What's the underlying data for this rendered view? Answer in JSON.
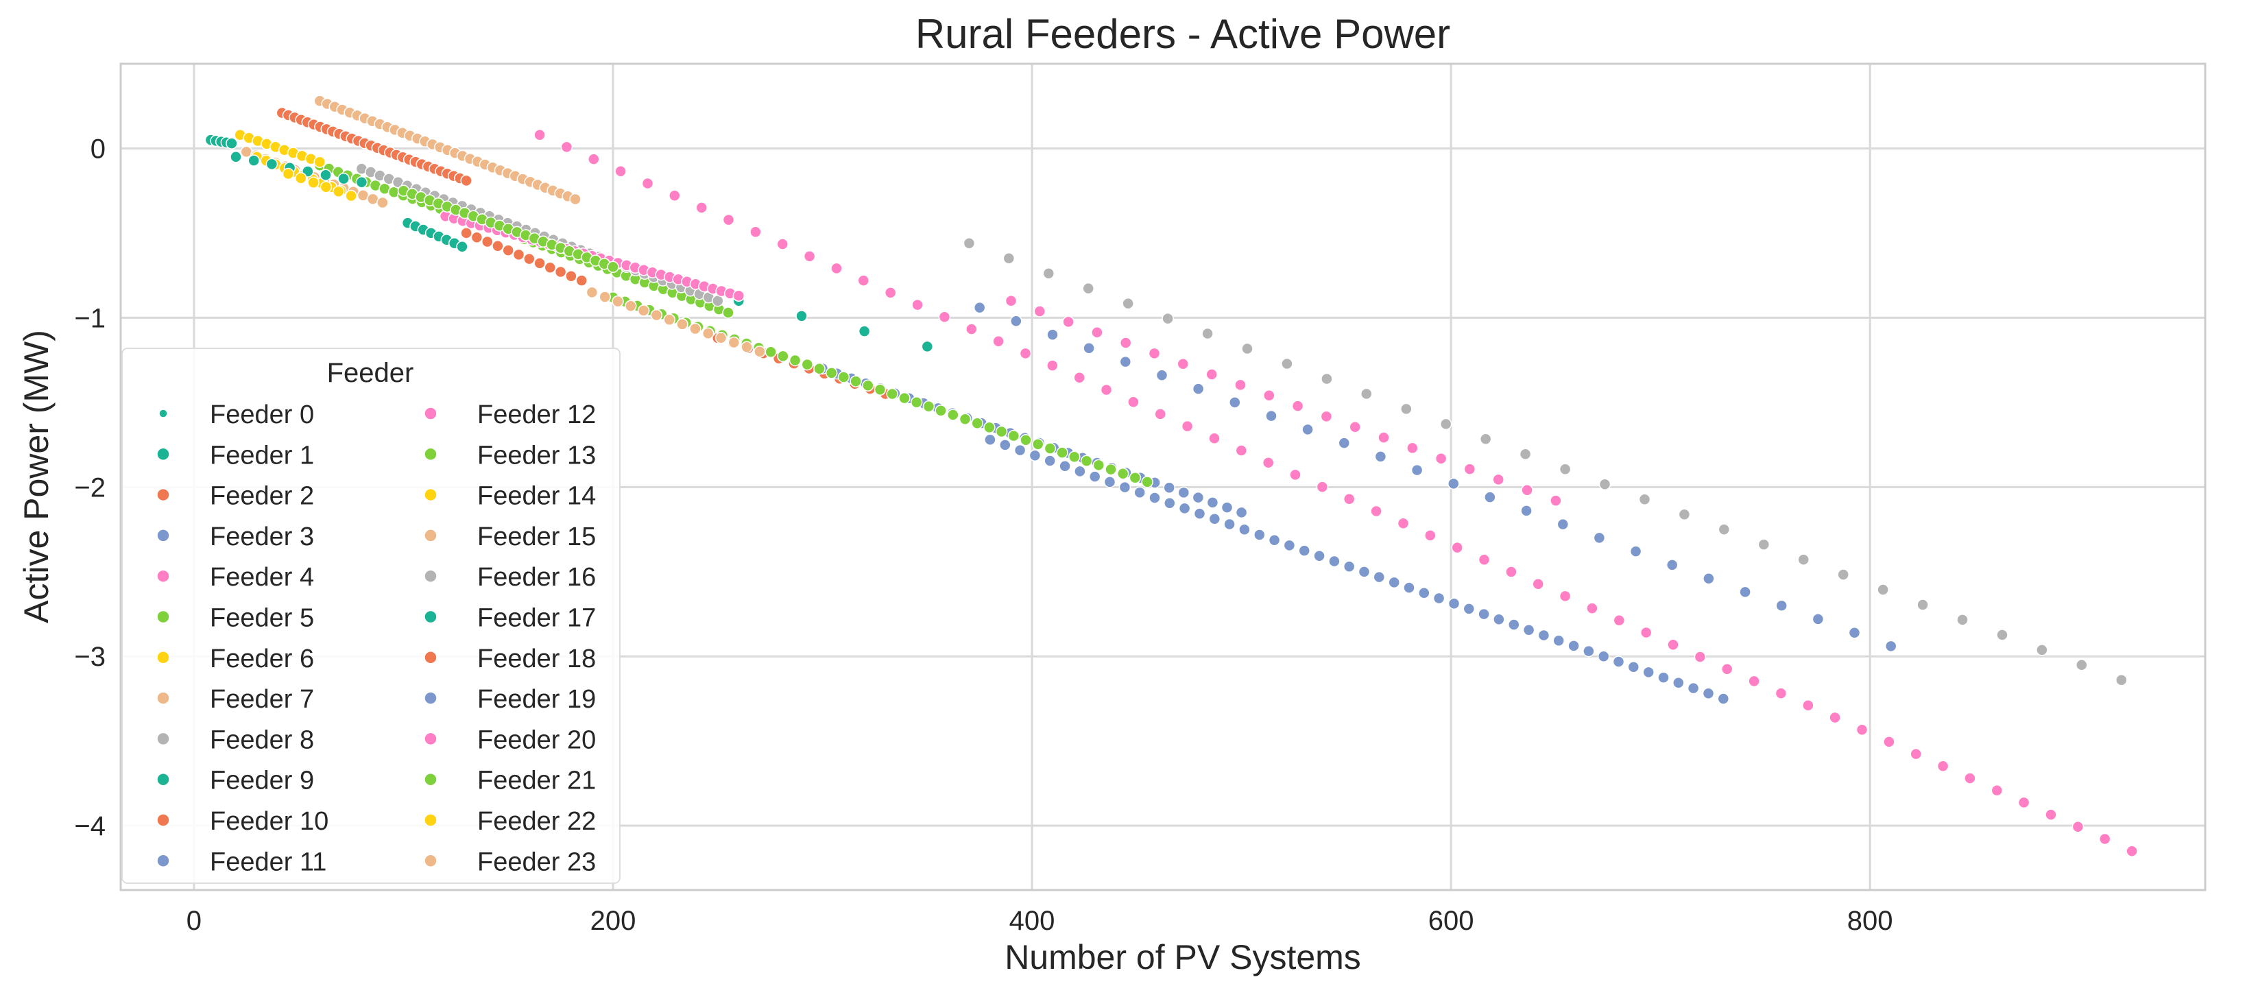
{
  "chart_data": {
    "type": "scatter",
    "title": "Rural Feeders - Active Power",
    "xlabel": "Number of PV Systems",
    "ylabel": "Active Power (MW)",
    "xlim": [
      -35,
      960
    ],
    "ylim": [
      -4.38,
      0.5
    ],
    "xticks": [
      0,
      200,
      400,
      600,
      800
    ],
    "yticks": [
      0,
      -1,
      -2,
      -3,
      -4
    ],
    "xtick_labels": [
      "0",
      "200",
      "400",
      "600",
      "800"
    ],
    "ytick_labels": [
      "0",
      "−1",
      "−2",
      "−3",
      "−4"
    ],
    "grid": true,
    "legend": {
      "title": "Feeder",
      "location": "left",
      "columns": 2
    },
    "series": [
      {
        "name": "Feeder 0",
        "color": "#1ab394",
        "x0": 8,
        "x1": 18,
        "y0": 0.05,
        "y1": 0.03,
        "n": 5
      },
      {
        "name": "Feeder 1",
        "color": "#1ab394",
        "x0": 102,
        "x1": 128,
        "y0": -0.44,
        "y1": -0.58,
        "n": 8
      },
      {
        "name": "Feeder 2",
        "color": "#f07850",
        "x0": 130,
        "x1": 185,
        "y0": -0.5,
        "y1": -0.78,
        "n": 12
      },
      {
        "name": "Feeder 3",
        "color": "#7b97cc",
        "x0": 380,
        "x1": 730,
        "y0": -1.72,
        "y1": -3.25,
        "n": 50
      },
      {
        "name": "Feeder 4",
        "color": "#ff7ec4",
        "x0": 165,
        "x1": 925,
        "y0": 0.08,
        "y1": -4.15,
        "n": 60
      },
      {
        "name": "Feeder 5",
        "color": "#7fd13b",
        "x0": 60,
        "x1": 255,
        "y0": -0.1,
        "y1": -0.97,
        "n": 45
      },
      {
        "name": "Feeder 6",
        "color": "#ffd30f",
        "x0": 22,
        "x1": 60,
        "y0": 0.08,
        "y1": -0.08,
        "n": 10
      },
      {
        "name": "Feeder 7",
        "color": "#efb889",
        "x0": 25,
        "x1": 90,
        "y0": -0.02,
        "y1": -0.32,
        "n": 15
      },
      {
        "name": "Feeder 8",
        "color": "#b3b3b3",
        "x0": 80,
        "x1": 250,
        "y0": -0.12,
        "y1": -0.9,
        "n": 40
      },
      {
        "name": "Feeder 9",
        "color": "#1ab394",
        "x0": 260,
        "x1": 350,
        "y0": -0.9,
        "y1": -1.17,
        "n": 4
      },
      {
        "name": "Feeder 10",
        "color": "#f07850",
        "x0": 250,
        "x1": 330,
        "y0": -1.12,
        "y1": -1.45,
        "n": 12
      },
      {
        "name": "Feeder 11",
        "color": "#7b97cc",
        "x0": 300,
        "x1": 500,
        "y0": -1.3,
        "y1": -2.15,
        "n": 30
      },
      {
        "name": "Feeder 12",
        "color": "#ff7ec4",
        "x0": 120,
        "x1": 260,
        "y0": -0.4,
        "y1": -0.87,
        "n": 35
      },
      {
        "name": "Feeder 13",
        "color": "#7fd13b",
        "x0": 100,
        "x1": 200,
        "y0": -0.25,
        "y1": -0.7,
        "n": 25
      },
      {
        "name": "Feeder 14",
        "color": "#ffd30f",
        "x0": 30,
        "x1": 70,
        "y0": -0.05,
        "y1": -0.25,
        "n": 10
      },
      {
        "name": "Feeder 15",
        "color": "#efb889",
        "x0": 60,
        "x1": 182,
        "y0": 0.28,
        "y1": -0.3,
        "n": 35
      },
      {
        "name": "Feeder 16",
        "color": "#b3b3b3",
        "x0": 370,
        "x1": 920,
        "y0": -0.56,
        "y1": -3.14,
        "n": 30
      },
      {
        "name": "Feeder 17",
        "color": "#1ab394",
        "x0": 20,
        "x1": 80,
        "y0": -0.05,
        "y1": -0.2,
        "n": 8
      },
      {
        "name": "Feeder 18",
        "color": "#f07850",
        "x0": 42,
        "x1": 130,
        "y0": 0.21,
        "y1": -0.19,
        "n": 30
      },
      {
        "name": "Feeder 19",
        "color": "#7b97cc",
        "x0": 375,
        "x1": 810,
        "y0": -0.94,
        "y1": -2.94,
        "n": 26
      },
      {
        "name": "Feeder 20",
        "color": "#ff7ec4",
        "x0": 390,
        "x1": 650,
        "y0": -0.9,
        "y1": -2.08,
        "n": 20
      },
      {
        "name": "Feeder 21",
        "color": "#7fd13b",
        "x0": 200,
        "x1": 455,
        "y0": -0.88,
        "y1": -1.97,
        "n": 45
      },
      {
        "name": "Feeder 22",
        "color": "#ffd30f",
        "x0": 45,
        "x1": 75,
        "y0": -0.15,
        "y1": -0.28,
        "n": 6
      },
      {
        "name": "Feeder 23",
        "color": "#efb889",
        "x0": 190,
        "x1": 270,
        "y0": -0.85,
        "y1": -1.2,
        "n": 14
      }
    ]
  }
}
